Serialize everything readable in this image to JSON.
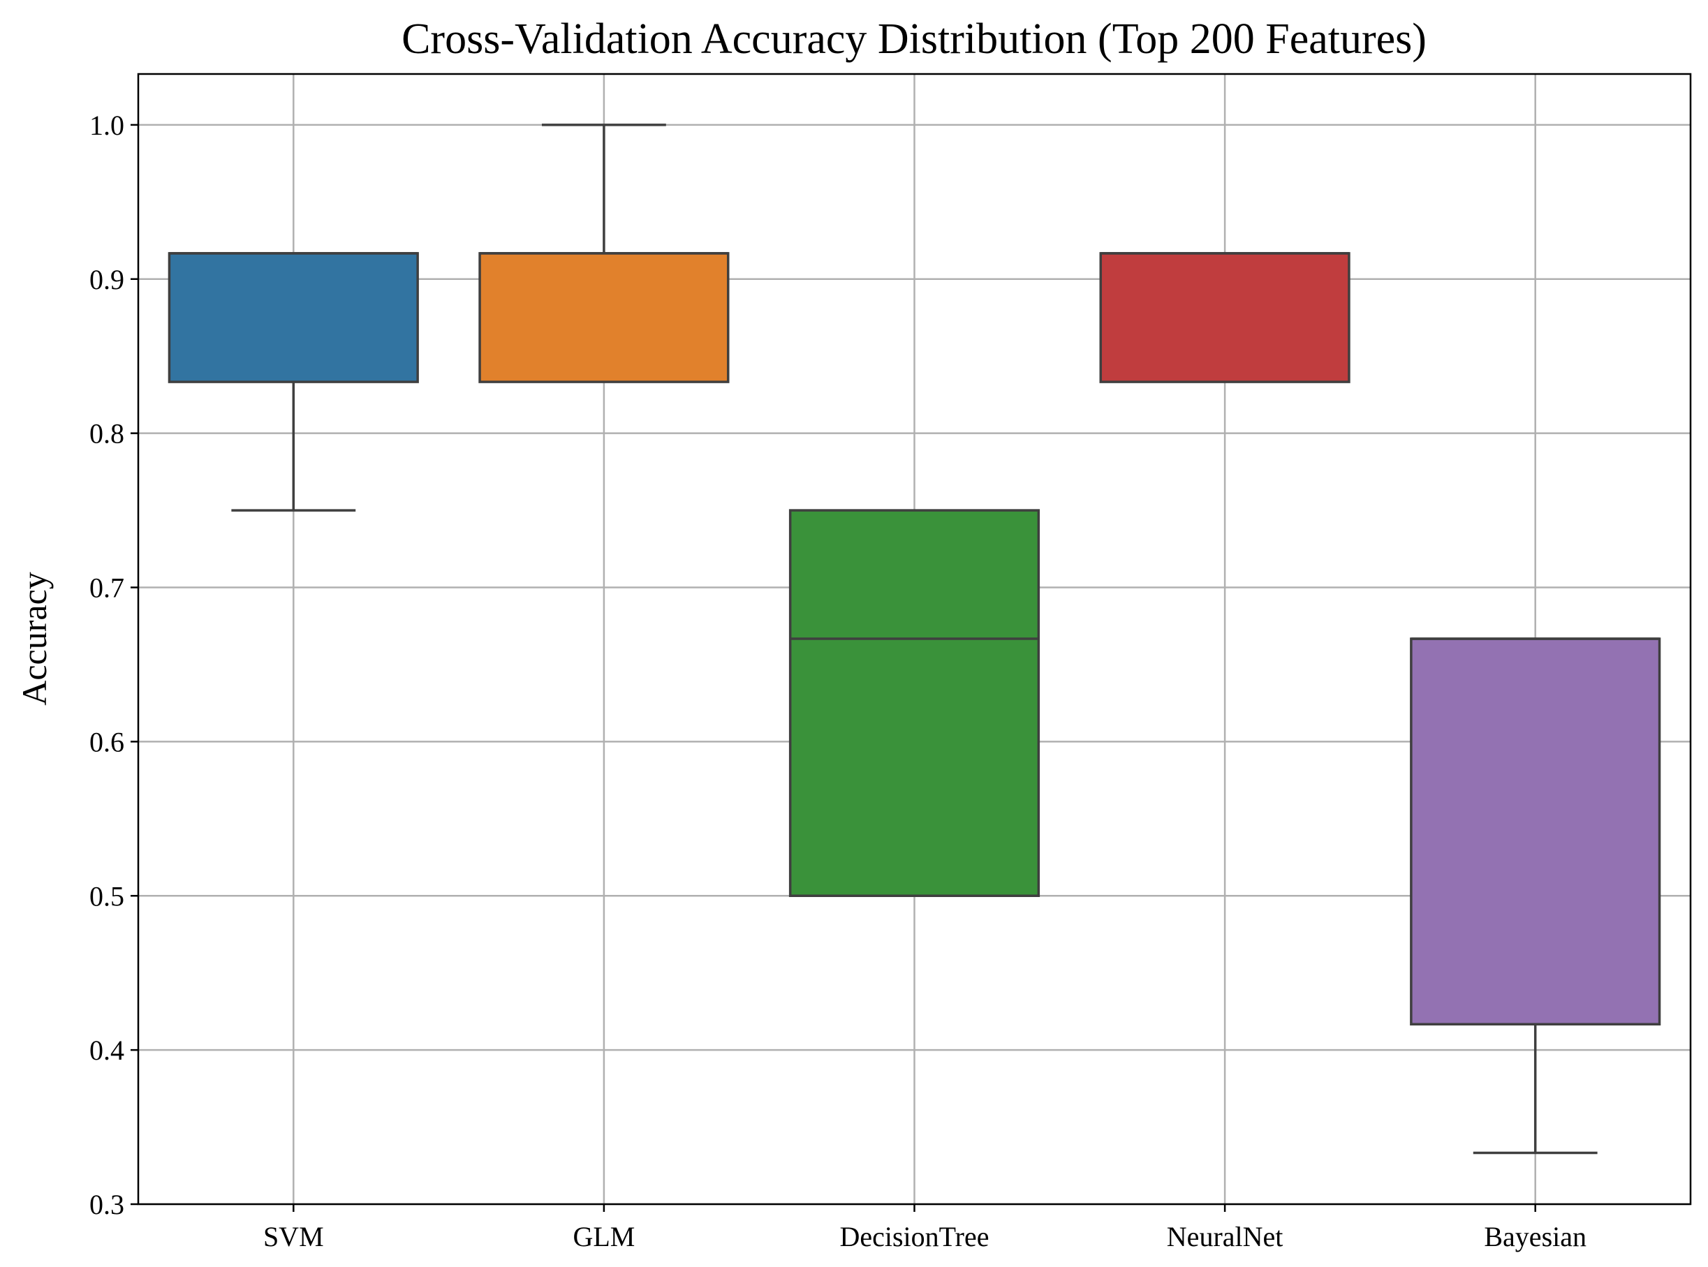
{
  "chart_data": {
    "type": "boxplot",
    "title": "Cross-Validation Accuracy Distribution (Top 200 Features)",
    "xlabel": "",
    "ylabel": "Accuracy",
    "ylim": [
      0.3,
      1.033
    ],
    "yticks": [
      "0.3",
      "0.4",
      "0.5",
      "0.6",
      "0.7",
      "0.8",
      "0.9",
      "1.0"
    ],
    "grid": true,
    "categories": [
      "SVM",
      "GLM",
      "DecisionTree",
      "NeuralNet",
      "Bayesian"
    ],
    "boxes": [
      {
        "name": "SVM",
        "whisker_low": 0.75,
        "q1": 0.8333,
        "median": 0.9167,
        "q3": 0.9167,
        "whisker_high": 0.9167,
        "color": "#3274a1"
      },
      {
        "name": "GLM",
        "whisker_low": 0.8333,
        "q1": 0.8333,
        "median": 0.9167,
        "q3": 0.9167,
        "whisker_high": 1.0,
        "color": "#e1812c"
      },
      {
        "name": "DecisionTree",
        "whisker_low": 0.5,
        "q1": 0.5,
        "median": 0.6667,
        "q3": 0.75,
        "whisker_high": 0.75,
        "color": "#3a923a"
      },
      {
        "name": "NeuralNet",
        "whisker_low": 0.8333,
        "q1": 0.8333,
        "median": 0.9167,
        "q3": 0.9167,
        "whisker_high": 0.9167,
        "color": "#c03d3e"
      },
      {
        "name": "Bayesian",
        "whisker_low": 0.3333,
        "q1": 0.4167,
        "median": 0.6667,
        "q3": 0.6667,
        "whisker_high": 0.6667,
        "color": "#9372b2"
      }
    ]
  }
}
